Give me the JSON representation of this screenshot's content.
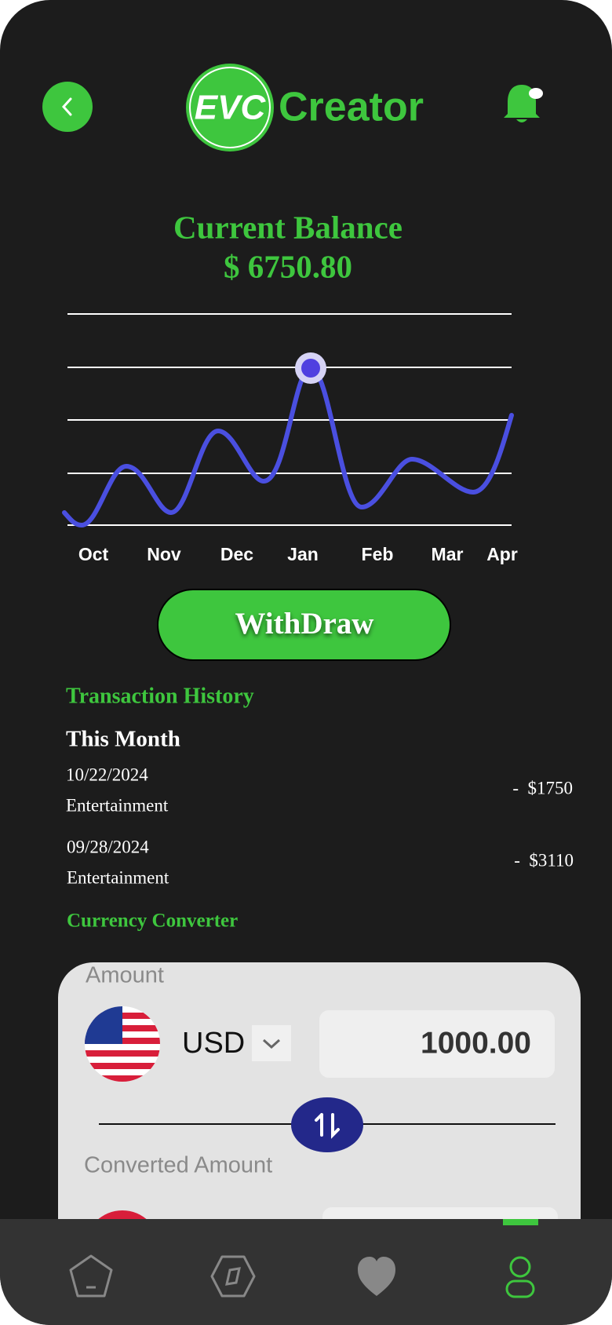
{
  "header": {
    "logo": "EVC",
    "brand": "Creator"
  },
  "balance": {
    "title": "Current Balance",
    "amount": "$ 6750.80"
  },
  "chart": {
    "months": [
      "Oct",
      "Nov",
      "Dec",
      "Jan",
      "Feb",
      "Mar",
      "Apr"
    ]
  },
  "withdraw": "WithDraw",
  "transactions": {
    "title": "Transaction History",
    "period": "This Month",
    "items": [
      {
        "date": "10/22/2024",
        "category": "Entertainment",
        "amount": "-  $1750"
      },
      {
        "date": "09/28/2024",
        "category": "Entertainment",
        "amount": "-  $3110"
      }
    ]
  },
  "converter": {
    "title": "Currency Converter",
    "amount_label": "Amount",
    "currency": "USD",
    "amount": "1000.00",
    "converted_label": "Converted Amount"
  }
}
